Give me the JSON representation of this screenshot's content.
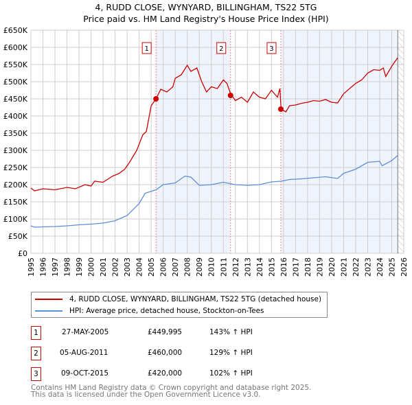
{
  "title": "4, RUDD CLOSE, WYNYARD, BILLINGHAM, TS22 5TG",
  "subtitle": "Price paid vs. HM Land Registry's House Price Index (HPI)",
  "chart_data": {
    "type": "line",
    "title": "4, RUDD CLOSE, WYNYARD, BILLINGHAM, TS22 5TG",
    "subtitle": "Price paid vs. HM Land Registry's House Price Index (HPI)",
    "xlim": [
      1995,
      2026
    ],
    "ylim": [
      0,
      650000
    ],
    "x_ticks": [
      "1995",
      "1996",
      "1997",
      "1998",
      "1999",
      "2000",
      "2001",
      "2002",
      "2003",
      "2004",
      "2005",
      "2006",
      "2007",
      "2008",
      "2009",
      "2010",
      "2011",
      "2012",
      "2013",
      "2014",
      "2015",
      "2016",
      "2017",
      "2018",
      "2019",
      "2020",
      "2021",
      "2022",
      "2023",
      "2024",
      "2025",
      "2026"
    ],
    "y_ticks": [
      "£0",
      "£50K",
      "£100K",
      "£150K",
      "£200K",
      "£250K",
      "£300K",
      "£350K",
      "£400K",
      "£450K",
      "£500K",
      "£550K",
      "£600K",
      "£650K"
    ],
    "grid": true,
    "series": [
      {
        "name": "4, RUDD CLOSE, WYNYARD, BILLINGHAM, TS22 5TG (detached house)",
        "color": "#cc0000",
        "x": [
          1995,
          1995.3,
          1996,
          1997,
          1998,
          1998.7,
          1999.5,
          2000,
          2000.3,
          2001,
          2001.8,
          2002.3,
          2002.8,
          2003.2,
          2003.8,
          2004.3,
          2004.6,
          2005,
          2005.4,
          2005.8,
          2006.3,
          2006.8,
          2007,
          2007.5,
          2008,
          2008.3,
          2008.8,
          2009.2,
          2009.6,
          2010,
          2010.5,
          2011,
          2011.3,
          2011.6,
          2012,
          2012.5,
          2013,
          2013.5,
          2014,
          2014.5,
          2015,
          2015.5,
          2015.7,
          2015.8,
          2016.2,
          2016.5,
          2017,
          2017.5,
          2018,
          2018.5,
          2019,
          2019.5,
          2020,
          2020.5,
          2021,
          2021.5,
          2022,
          2022.5,
          2023,
          2023.5,
          2024,
          2024.3,
          2024.5,
          2025,
          2025.5
        ],
        "y": [
          190000,
          182000,
          188000,
          185000,
          192000,
          188000,
          200000,
          196000,
          210000,
          207000,
          225000,
          232000,
          245000,
          265000,
          300000,
          345000,
          355000,
          430000,
          450000,
          478000,
          470000,
          485000,
          510000,
          520000,
          548000,
          530000,
          540000,
          500000,
          470000,
          485000,
          480000,
          505000,
          495000,
          465000,
          445000,
          455000,
          440000,
          470000,
          455000,
          450000,
          475000,
          455000,
          480000,
          420000,
          412000,
          430000,
          432000,
          437000,
          440000,
          445000,
          443000,
          448000,
          440000,
          438000,
          465000,
          480000,
          495000,
          505000,
          525000,
          535000,
          533000,
          540000,
          515000,
          545000,
          570000
        ]
      },
      {
        "name": "HPI: Average price, detached house, Stockton-on-Tees",
        "color": "#5b8fd4",
        "x": [
          1995,
          1995.3,
          1996,
          1997,
          1998,
          1999,
          2000,
          2001,
          2002,
          2003,
          2004,
          2004.5,
          2005.4,
          2006,
          2007,
          2007.8,
          2008.3,
          2009,
          2010,
          2011,
          2012,
          2013,
          2014,
          2015,
          2015.8,
          2016.5,
          2017.5,
          2018.5,
          2019.5,
          2020.5,
          2021,
          2022,
          2023,
          2024,
          2024.2,
          2025,
          2025.5
        ],
        "y": [
          80000,
          76000,
          77000,
          78000,
          80000,
          83000,
          85000,
          88000,
          95000,
          110000,
          145000,
          175000,
          185000,
          200000,
          205000,
          225000,
          222000,
          198000,
          200000,
          207000,
          200000,
          198000,
          200000,
          208000,
          210000,
          215000,
          217000,
          220000,
          223000,
          218000,
          233000,
          245000,
          265000,
          268000,
          255000,
          270000,
          285000
        ]
      }
    ],
    "sales": [
      {
        "label": "1",
        "x": 2005.4,
        "y": 449995
      },
      {
        "label": "2",
        "x": 2011.6,
        "y": 460000
      },
      {
        "label": "3",
        "x": 2015.78,
        "y": 420000
      }
    ],
    "shaded_periods": [
      [
        2005.4,
        2011.6
      ],
      [
        2015.78,
        2025.5
      ]
    ],
    "future_hatch_from": 2025.5
  },
  "legend": {
    "property": "4, RUDD CLOSE, WYNYARD, BILLINGHAM, TS22 5TG (detached house)",
    "hpi": "HPI: Average price, detached house, Stockton-on-Tees"
  },
  "transactions": [
    {
      "num": "1",
      "date": "27-MAY-2005",
      "price": "£449,995",
      "hpi": "143% ↑ HPI"
    },
    {
      "num": "2",
      "date": "05-AUG-2011",
      "price": "£460,000",
      "hpi": "129% ↑ HPI"
    },
    {
      "num": "3",
      "date": "09-OCT-2015",
      "price": "£420,000",
      "hpi": "102% ↑ HPI"
    }
  ],
  "footer": [
    "Contains HM Land Registry data © Crown copyright and database right 2025.",
    "This data is licensed under the Open Government Licence v3.0."
  ]
}
